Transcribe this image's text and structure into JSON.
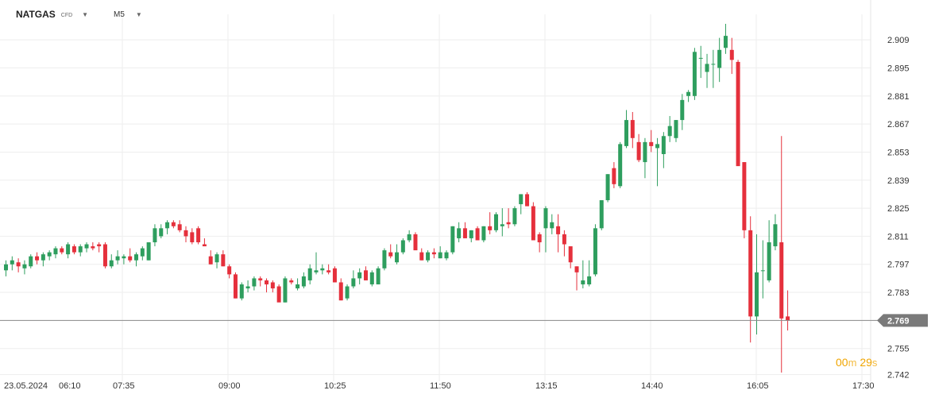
{
  "header": {
    "symbol": "NATGAS",
    "symbol_type": "CFD",
    "timeframe": "M5"
  },
  "countdown": {
    "minutes": "00",
    "minutes_unit": "m",
    "seconds": "29",
    "seconds_unit": "s"
  },
  "colors": {
    "up": "#2e9e5e",
    "down": "#e5303c",
    "grid": "#eeeeee",
    "price_line": "#888888",
    "price_label_bg": "#7a7a7a",
    "countdown": "#f0a500"
  },
  "chart_data": {
    "type": "candlestick",
    "ylim": [
      2.737,
      2.92
    ],
    "y_ticks": [
      "2.909",
      "2.895",
      "2.881",
      "2.867",
      "2.853",
      "2.839",
      "2.825",
      "2.811",
      "2.797",
      "2.783",
      "2.755",
      "2.742"
    ],
    "x_ticks": [
      "23.05.2024",
      "06:10",
      "07:35",
      "09:00",
      "10:25",
      "11:50",
      "13:15",
      "14:40",
      "16:05",
      "17:30"
    ],
    "current_price": "2.769",
    "candles": [
      [
        2.794,
        2.799,
        2.791,
        2.797
      ],
      [
        2.797,
        2.801,
        2.794,
        2.799
      ],
      [
        2.798,
        2.8,
        2.793,
        2.796
      ],
      [
        2.795,
        2.799,
        2.792,
        2.797
      ],
      [
        2.796,
        2.802,
        2.795,
        2.801
      ],
      [
        2.801,
        2.803,
        2.797,
        2.799
      ],
      [
        2.799,
        2.803,
        2.796,
        2.802
      ],
      [
        2.801,
        2.804,
        2.799,
        2.803
      ],
      [
        2.802,
        2.806,
        2.8,
        2.805
      ],
      [
        2.805,
        2.806,
        2.802,
        2.803
      ],
      [
        2.802,
        2.808,
        2.8,
        2.807
      ],
      [
        2.806,
        2.807,
        2.802,
        2.803
      ],
      [
        2.803,
        2.807,
        2.801,
        2.806
      ],
      [
        2.805,
        2.808,
        2.803,
        2.807
      ],
      [
        2.806,
        2.808,
        2.804,
        2.805
      ],
      [
        2.807,
        2.808,
        2.803,
        2.806
      ],
      [
        2.807,
        2.808,
        2.795,
        2.796
      ],
      [
        2.796,
        2.802,
        2.795,
        2.799
      ],
      [
        2.799,
        2.804,
        2.797,
        2.801
      ],
      [
        2.8,
        2.802,
        2.797,
        2.801
      ],
      [
        2.801,
        2.805,
        2.798,
        2.799
      ],
      [
        2.799,
        2.803,
        2.796,
        2.802
      ],
      [
        2.801,
        2.806,
        2.799,
        2.805
      ],
      [
        2.799,
        2.808,
        2.799,
        2.808
      ],
      [
        2.808,
        2.817,
        2.806,
        2.815
      ],
      [
        2.811,
        2.817,
        2.81,
        2.815
      ],
      [
        2.815,
        2.819,
        2.812,
        2.818
      ],
      [
        2.818,
        2.819,
        2.815,
        2.816
      ],
      [
        2.817,
        2.819,
        2.813,
        2.814
      ],
      [
        2.814,
        2.816,
        2.808,
        2.811
      ],
      [
        2.813,
        2.815,
        2.807,
        2.808
      ],
      [
        2.815,
        2.816,
        2.807,
        2.808
      ],
      [
        2.807,
        2.81,
        2.806,
        2.806
      ],
      [
        2.801,
        2.804,
        2.797,
        2.797
      ],
      [
        2.798,
        2.803,
        2.795,
        2.802
      ],
      [
        2.802,
        2.804,
        2.796,
        2.796
      ],
      [
        2.796,
        2.797,
        2.79,
        2.792
      ],
      [
        2.792,
        2.793,
        2.78,
        2.78
      ],
      [
        2.78,
        2.788,
        2.779,
        2.787
      ],
      [
        2.785,
        2.789,
        2.783,
        2.786
      ],
      [
        2.786,
        2.791,
        2.784,
        2.79
      ],
      [
        2.79,
        2.791,
        2.786,
        2.789
      ],
      [
        2.789,
        2.79,
        2.783,
        2.787
      ],
      [
        2.788,
        2.789,
        2.783,
        2.785
      ],
      [
        2.786,
        2.787,
        2.779,
        2.778
      ],
      [
        2.778,
        2.791,
        2.778,
        2.79
      ],
      [
        2.789,
        2.79,
        2.787,
        2.788
      ],
      [
        2.785,
        2.79,
        2.784,
        2.787
      ],
      [
        2.786,
        2.793,
        2.785,
        2.791
      ],
      [
        2.789,
        2.797,
        2.787,
        2.795
      ],
      [
        2.793,
        2.803,
        2.792,
        2.794
      ],
      [
        2.794,
        2.797,
        2.792,
        2.795
      ],
      [
        2.794,
        2.797,
        2.792,
        2.793
      ],
      [
        2.795,
        2.796,
        2.788,
        2.788
      ],
      [
        2.788,
        2.79,
        2.779,
        2.779
      ],
      [
        2.78,
        2.787,
        2.779,
        2.786
      ],
      [
        2.786,
        2.794,
        2.785,
        2.79
      ],
      [
        2.79,
        2.795,
        2.787,
        2.793
      ],
      [
        2.794,
        2.796,
        2.789,
        2.789
      ],
      [
        2.787,
        2.794,
        2.786,
        2.793
      ],
      [
        2.787,
        2.796,
        2.787,
        2.795
      ],
      [
        2.795,
        2.805,
        2.794,
        2.804
      ],
      [
        2.803,
        2.807,
        2.8,
        2.801
      ],
      [
        2.798,
        2.807,
        2.797,
        2.803
      ],
      [
        2.803,
        2.81,
        2.802,
        2.809
      ],
      [
        2.809,
        2.814,
        2.808,
        2.812
      ],
      [
        2.812,
        2.813,
        2.805,
        2.804
      ],
      [
        2.803,
        2.805,
        2.799,
        2.799
      ],
      [
        2.799,
        2.804,
        2.798,
        2.803
      ],
      [
        2.803,
        2.805,
        2.8,
        2.802
      ],
      [
        2.8,
        2.806,
        2.8,
        2.803
      ],
      [
        2.8,
        2.804,
        2.799,
        2.803
      ],
      [
        2.803,
        2.816,
        2.802,
        2.816
      ],
      [
        2.81,
        2.818,
        2.808,
        2.815
      ],
      [
        2.815,
        2.818,
        2.811,
        2.81
      ],
      [
        2.81,
        2.814,
        2.808,
        2.814
      ],
      [
        2.815,
        2.816,
        2.809,
        2.809
      ],
      [
        2.809,
        2.816,
        2.808,
        2.816
      ],
      [
        2.816,
        2.823,
        2.812,
        2.814
      ],
      [
        2.814,
        2.823,
        2.813,
        2.822
      ],
      [
        2.816,
        2.825,
        2.811,
        2.817
      ],
      [
        2.818,
        2.825,
        2.815,
        2.817
      ],
      [
        2.817,
        2.826,
        2.816,
        2.825
      ],
      [
        2.827,
        2.832,
        2.822,
        2.832
      ],
      [
        2.832,
        2.833,
        2.826,
        2.826
      ],
      [
        2.826,
        2.828,
        2.81,
        2.809
      ],
      [
        2.812,
        2.813,
        2.803,
        2.808
      ],
      [
        2.815,
        2.826,
        2.803,
        2.825
      ],
      [
        2.815,
        2.822,
        2.812,
        2.818
      ],
      [
        2.816,
        2.822,
        2.803,
        2.812
      ],
      [
        2.812,
        2.814,
        2.801,
        2.807
      ],
      [
        2.806,
        2.806,
        2.795,
        2.798
      ],
      [
        2.796,
        2.796,
        2.784,
        2.793
      ],
      [
        2.787,
        2.799,
        2.785,
        2.789
      ],
      [
        2.787,
        2.799,
        2.786,
        2.791
      ],
      [
        2.792,
        2.817,
        2.791,
        2.815
      ],
      [
        2.815,
        2.829,
        2.814,
        2.829
      ],
      [
        2.829,
        2.842,
        2.828,
        2.842
      ],
      [
        2.845,
        2.848,
        2.835,
        2.837
      ],
      [
        2.836,
        2.858,
        2.835,
        2.857
      ],
      [
        2.856,
        2.874,
        2.855,
        2.869
      ],
      [
        2.869,
        2.873,
        2.855,
        2.86
      ],
      [
        2.858,
        2.862,
        2.848,
        2.849
      ],
      [
        2.848,
        2.86,
        2.84,
        2.858
      ],
      [
        2.858,
        2.864,
        2.853,
        2.856
      ],
      [
        2.855,
        2.86,
        2.836,
        2.857
      ],
      [
        2.852,
        2.863,
        2.845,
        2.861
      ],
      [
        2.861,
        2.871,
        2.858,
        2.866
      ],
      [
        2.86,
        2.869,
        2.858,
        2.869
      ],
      [
        2.869,
        2.882,
        2.864,
        2.879
      ],
      [
        2.881,
        2.884,
        2.878,
        2.883
      ],
      [
        2.881,
        2.905,
        2.879,
        2.903
      ],
      [
        2.9,
        2.906,
        2.89,
        2.9
      ],
      [
        2.893,
        2.902,
        2.885,
        2.897
      ],
      [
        2.897,
        2.904,
        2.885,
        2.897
      ],
      [
        2.895,
        2.91,
        2.888,
        2.904
      ],
      [
        2.905,
        2.917,
        2.902,
        2.911
      ],
      [
        2.904,
        2.91,
        2.892,
        2.899
      ],
      [
        2.898,
        2.899,
        2.847,
        2.846
      ],
      [
        2.848,
        2.848,
        2.81,
        2.814
      ],
      [
        2.814,
        2.821,
        2.758,
        2.771
      ],
      [
        2.771,
        2.812,
        2.762,
        2.793
      ],
      [
        2.794,
        2.809,
        2.78,
        2.794
      ],
      [
        2.789,
        2.819,
        2.788,
        2.808
      ],
      [
        2.806,
        2.822,
        2.804,
        2.817
      ],
      [
        2.808,
        2.861,
        2.743,
        2.77
      ],
      [
        2.771,
        2.784,
        2.764,
        2.769
      ]
    ]
  }
}
